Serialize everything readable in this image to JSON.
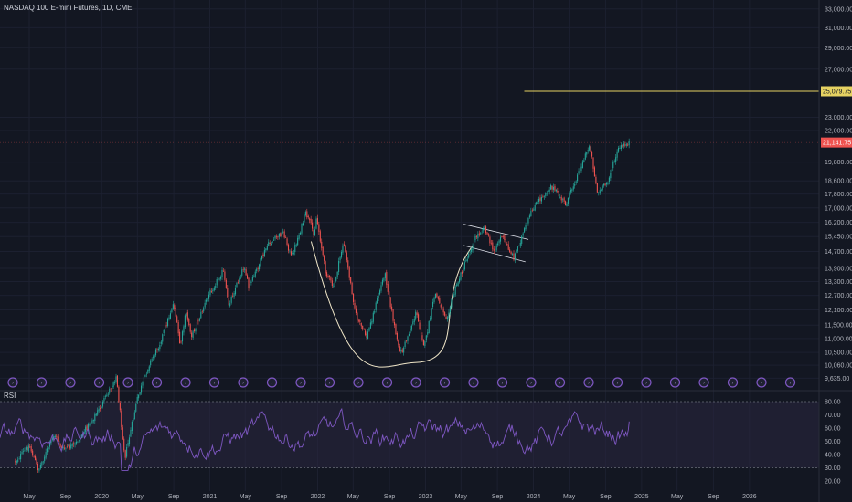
{
  "header": {
    "symbol_title": "NASDAQ 100 E-mini Futures, 1D, CME"
  },
  "colors": {
    "background": "#131722",
    "up": "#26a69a",
    "down": "#ef5350",
    "target_line": "#e6d262",
    "cup_curve": "#f0e6c8",
    "rsi_line": "#7e57c2",
    "rsi_band": "#2a2740",
    "event_icon": "#7e57c2"
  },
  "rsi_panel": {
    "label": "RSI"
  },
  "chart_data": {
    "type": "candlestick",
    "title": "NASDAQ 100 E-mini Futures, 1D, CME",
    "y_scale": "log",
    "price_axis_ticks": [
      "33,000.00",
      "31,000.00",
      "29,000.00",
      "27,000.00",
      "23,000.00",
      "22,000.00",
      "19,800.00",
      "18,600.00",
      "17,800.00",
      "17,000.00",
      "16,200.00",
      "15,450.00",
      "14,700.00",
      "13,900.00",
      "13,300.00",
      "12,700.00",
      "12,100.00",
      "11,500.00",
      "11,000.00",
      "10,500.00",
      "10,060.00",
      "9,635.00"
    ],
    "price_axis_ticks_numeric": [
      33000,
      31000,
      29000,
      27000,
      23000,
      22000,
      19800,
      18600,
      17800,
      17000,
      16200,
      15450,
      14700,
      13900,
      13300,
      12700,
      12100,
      11500,
      11000,
      10500,
      10060,
      9635
    ],
    "time_axis_labels": [
      "May",
      "Sep",
      "2020",
      "May",
      "Sep",
      "2021",
      "May",
      "Sep",
      "2022",
      "May",
      "Sep",
      "2023",
      "May",
      "Sep",
      "2024",
      "May",
      "Sep",
      "2025",
      "May",
      "Sep",
      "2026"
    ],
    "price_path": [
      {
        "date": "2019-03-15",
        "price": 7300
      },
      {
        "date": "2019-05-01",
        "price": 7700
      },
      {
        "date": "2019-06-01",
        "price": 7100
      },
      {
        "date": "2019-07-25",
        "price": 8000
      },
      {
        "date": "2019-08-20",
        "price": 7600
      },
      {
        "date": "2019-10-01",
        "price": 7700
      },
      {
        "date": "2019-12-01",
        "price": 8400
      },
      {
        "date": "2020-01-01",
        "price": 8800
      },
      {
        "date": "2020-02-19",
        "price": 9700
      },
      {
        "date": "2020-03-20",
        "price": 7400
      },
      {
        "date": "2020-05-01",
        "price": 9000
      },
      {
        "date": "2020-06-10",
        "price": 10100
      },
      {
        "date": "2020-07-15",
        "price": 10800
      },
      {
        "date": "2020-09-01",
        "price": 12400
      },
      {
        "date": "2020-09-23",
        "price": 10700
      },
      {
        "date": "2020-10-12",
        "price": 12000
      },
      {
        "date": "2020-11-01",
        "price": 11100
      },
      {
        "date": "2020-12-31",
        "price": 12800
      },
      {
        "date": "2021-02-15",
        "price": 13800
      },
      {
        "date": "2021-03-05",
        "price": 12300
      },
      {
        "date": "2021-04-28",
        "price": 14050
      },
      {
        "date": "2021-05-12",
        "price": 13000
      },
      {
        "date": "2021-07-15",
        "price": 15000
      },
      {
        "date": "2021-09-07",
        "price": 15700
      },
      {
        "date": "2021-10-04",
        "price": 14400
      },
      {
        "date": "2021-11-22",
        "price": 16700
      },
      {
        "date": "2021-12-20",
        "price": 15600
      },
      {
        "date": "2021-12-28",
        "price": 16500
      },
      {
        "date": "2022-01-27",
        "price": 13800
      },
      {
        "date": "2022-02-24",
        "price": 13000
      },
      {
        "date": "2022-03-29",
        "price": 15200
      },
      {
        "date": "2022-05-12",
        "price": 11800
      },
      {
        "date": "2022-06-16",
        "price": 11050
      },
      {
        "date": "2022-08-16",
        "price": 13700
      },
      {
        "date": "2022-09-30",
        "price": 10700
      },
      {
        "date": "2022-10-13",
        "price": 10500
      },
      {
        "date": "2022-11-30",
        "price": 12000
      },
      {
        "date": "2022-12-28",
        "price": 10700
      },
      {
        "date": "2023-02-02",
        "price": 12800
      },
      {
        "date": "2023-03-13",
        "price": 11800
      },
      {
        "date": "2023-04-15",
        "price": 13100
      },
      {
        "date": "2023-06-15",
        "price": 15300
      },
      {
        "date": "2023-07-19",
        "price": 16000
      },
      {
        "date": "2023-08-18",
        "price": 14700
      },
      {
        "date": "2023-09-15",
        "price": 15500
      },
      {
        "date": "2023-10-26",
        "price": 14400
      },
      {
        "date": "2023-12-31",
        "price": 17000
      },
      {
        "date": "2024-03-01",
        "price": 18300
      },
      {
        "date": "2024-04-19",
        "price": 17200
      },
      {
        "date": "2024-07-10",
        "price": 21000
      },
      {
        "date": "2024-08-05",
        "price": 17800
      },
      {
        "date": "2024-09-06",
        "price": 18500
      },
      {
        "date": "2024-10-15",
        "price": 20700
      },
      {
        "date": "2024-11-20",
        "price": 21141.75
      }
    ],
    "annotations": {
      "target_level_label": "25,079.75",
      "target_level": 25079.75,
      "target_line_start": "2023-12-01",
      "last_price_label": "21,141.75",
      "last_price": 21141.75,
      "cup_pattern": {
        "start": "2021-12-10",
        "bottom": "2022-11-25",
        "bottom_price": 10150,
        "end": "2023-06-10",
        "rim_price": 15000
      },
      "flag_channel": {
        "upper": [
          {
            "date": "2023-05-10",
            "price": 16100
          },
          {
            "date": "2023-12-15",
            "price": 15300
          }
        ],
        "lower": [
          {
            "date": "2023-05-10",
            "price": 15000
          },
          {
            "date": "2023-12-05",
            "price": 14200
          }
        ]
      }
    },
    "rsi": {
      "ticks": [
        "80.00",
        "70.00",
        "60.00",
        "50.00",
        "40.00",
        "30.00",
        "20.00"
      ],
      "ticks_numeric": [
        80,
        70,
        60,
        50,
        40,
        30,
        20
      ],
      "upper_band": 80,
      "lower_band": 30,
      "last_value": 65
    },
    "events_count": 28,
    "grid": true
  }
}
